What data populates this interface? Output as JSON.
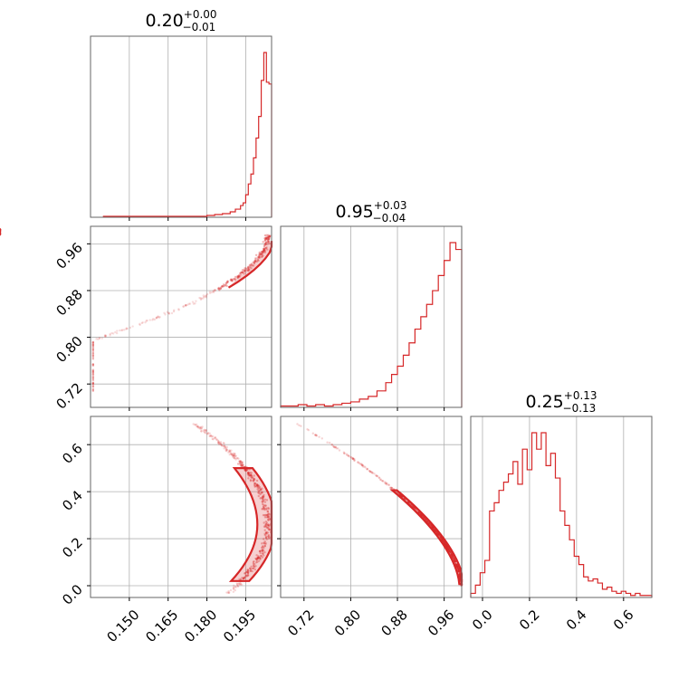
{
  "colors": {
    "accent": "#d62728",
    "grid": "#b0b0b0",
    "frame": "#666666"
  },
  "chart_data": {
    "type": "corner",
    "parameters": [
      {
        "title": {
          "value": "0.20",
          "plus": "+0.00",
          "minus": "−0.01"
        },
        "range": [
          0.135,
          0.205
        ],
        "ticks": [
          0.15,
          0.165,
          0.18,
          0.195
        ],
        "tick_labels": [
          "0.150",
          "0.165",
          "0.180",
          "0.195"
        ]
      },
      {
        "title": {
          "value": "0.95",
          "plus": "+0.03",
          "minus": "−0.04"
        },
        "range": [
          0.68,
          0.99
        ],
        "ticks": [
          0.72,
          0.8,
          0.88,
          0.96
        ],
        "tick_labels": [
          "0.72",
          "0.80",
          "0.88",
          "0.96"
        ]
      },
      {
        "title": {
          "value": "0.25",
          "plus": "+0.13",
          "minus": "−0.13"
        },
        "range": [
          -0.05,
          0.72
        ],
        "ticks": [
          0.0,
          0.2,
          0.4,
          0.6
        ],
        "tick_labels": [
          "0.0",
          "0.2",
          "0.4",
          "0.6"
        ]
      }
    ],
    "histograms": [
      {
        "bin_edges": [
          0.14,
          0.145,
          0.15,
          0.155,
          0.16,
          0.165,
          0.17,
          0.175,
          0.18,
          0.183,
          0.186,
          0.189,
          0.191,
          0.193,
          0.194,
          0.195,
          0.196,
          0.197,
          0.198,
          0.199,
          0.2,
          0.201,
          0.202,
          0.203,
          0.204,
          0.205
        ],
        "counts": [
          1,
          1,
          1,
          1,
          1,
          1,
          1,
          1,
          2,
          3,
          4,
          6,
          9,
          13,
          16,
          25,
          37,
          48,
          66,
          88,
          112,
          152,
          183,
          150,
          148
        ]
      },
      {
        "bin_edges": [
          0.68,
          0.695,
          0.71,
          0.725,
          0.74,
          0.755,
          0.77,
          0.785,
          0.8,
          0.815,
          0.83,
          0.845,
          0.86,
          0.87,
          0.88,
          0.89,
          0.9,
          0.91,
          0.92,
          0.93,
          0.94,
          0.95,
          0.96,
          0.97,
          0.98,
          0.99
        ],
        "counts": [
          1,
          1,
          2,
          1,
          2,
          1,
          2,
          3,
          4,
          6,
          8,
          12,
          18,
          24,
          30,
          38,
          47,
          57,
          66,
          75,
          85,
          96,
          107,
          120,
          115
        ]
      },
      {
        "bin_edges": [
          -0.05,
          -0.03,
          -0.01,
          0.01,
          0.03,
          0.05,
          0.07,
          0.09,
          0.11,
          0.13,
          0.15,
          0.17,
          0.19,
          0.21,
          0.23,
          0.25,
          0.27,
          0.29,
          0.31,
          0.33,
          0.35,
          0.37,
          0.39,
          0.41,
          0.43,
          0.45,
          0.47,
          0.49,
          0.51,
          0.53,
          0.55,
          0.57,
          0.59,
          0.61,
          0.63,
          0.65,
          0.67,
          0.69,
          0.72
        ],
        "counts": [
          2,
          6,
          12,
          18,
          42,
          46,
          52,
          56,
          60,
          66,
          55,
          72,
          62,
          80,
          72,
          80,
          64,
          70,
          58,
          42,
          35,
          28,
          20,
          16,
          10,
          8,
          9,
          7,
          4,
          5,
          3,
          2,
          3,
          2,
          1,
          2,
          1,
          1
        ]
      }
    ],
    "scatter": {
      "p1_p2": {
        "x_range": [
          0.15,
          0.205
        ],
        "y_range": [
          0.7,
          0.985
        ],
        "count": 380
      },
      "p1_p3": {
        "x_range": [
          0.145,
          0.205
        ],
        "y_range": [
          -0.03,
          0.7
        ],
        "count": 420
      },
      "p2_p3": {
        "x_range": [
          0.7,
          0.99
        ],
        "y_range": [
          0.0,
          0.7
        ],
        "count": 480
      }
    },
    "grid": true
  }
}
